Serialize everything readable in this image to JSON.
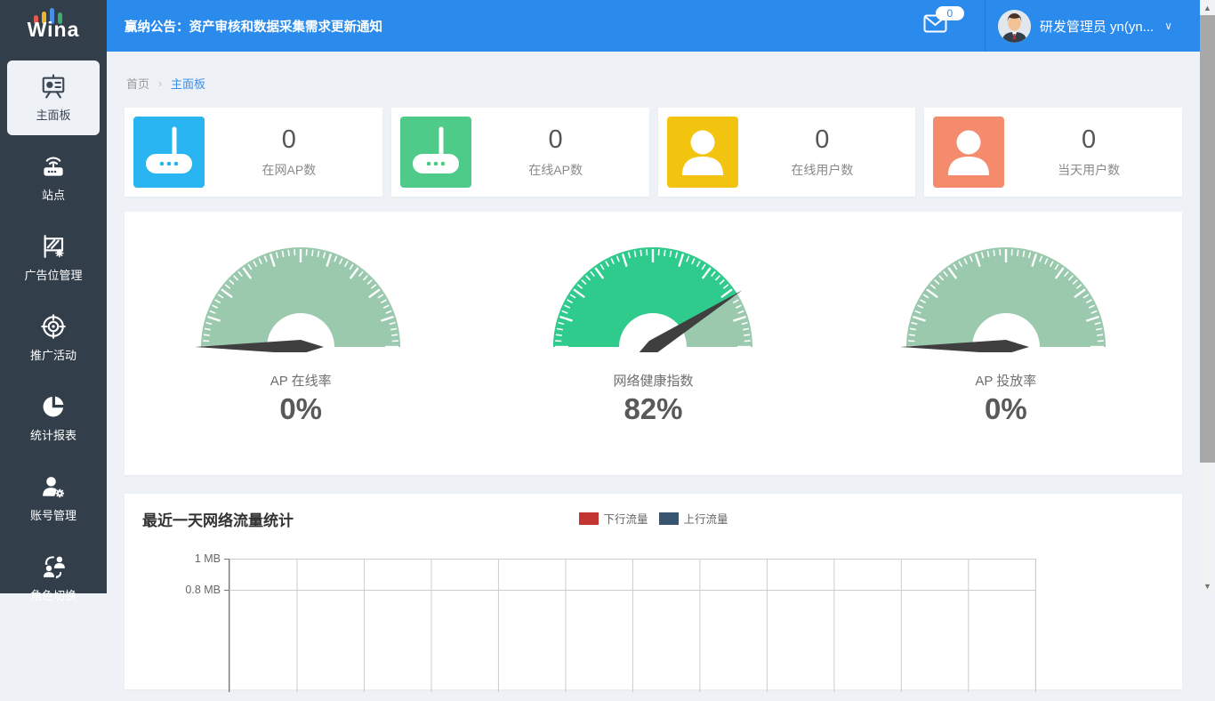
{
  "colors": {
    "header_bg": "#2b8bec",
    "sidebar_bg": "#323e4a",
    "content_bg": "#eef2f7",
    "gauge_fill": "#2fcb8d",
    "gauge_track": "#9ac9ae",
    "needle": "#3f3f3f"
  },
  "header": {
    "logo": "Wina",
    "announcement": "赢纳公告：资产审核和数据采集需求更新通知",
    "mail_badge": "0",
    "user": "研发管理员 yn(yn...",
    "chevron": "∨"
  },
  "sidebar": {
    "items": [
      {
        "label": "主面板",
        "icon": "dashboard-icon",
        "active": true
      },
      {
        "label": "站点",
        "icon": "site-icon",
        "active": false
      },
      {
        "label": "广告位管理",
        "icon": "ad-space-icon",
        "active": false
      },
      {
        "label": "推广活动",
        "icon": "promotion-icon",
        "active": false
      },
      {
        "label": "统计报表",
        "icon": "report-icon",
        "active": false
      },
      {
        "label": "账号管理",
        "icon": "account-icon",
        "active": false
      },
      {
        "label": "角色切换",
        "icon": "role-switch-icon",
        "active": false
      }
    ]
  },
  "breadcrumb": {
    "home": "首页",
    "separator": "›",
    "current": "主面板"
  },
  "stats": [
    {
      "label": "在网AP数",
      "value": "0",
      "icon": "router-icon",
      "color": "#29b5f1"
    },
    {
      "label": "在线AP数",
      "value": "0",
      "icon": "router-icon",
      "color": "#4fcb89"
    },
    {
      "label": "在线用户数",
      "value": "0",
      "icon": "user-icon",
      "color": "#f2c40f"
    },
    {
      "label": "当天用户数",
      "value": "0",
      "icon": "user-icon",
      "color": "#f48b6c"
    }
  ],
  "traffic": {
    "title": "最近一天网络流量统计",
    "y_ticks": [
      "1 MB",
      "0.8 MB"
    ]
  },
  "chart_data": [
    {
      "type": "gauge",
      "title": "AP 在线率",
      "value": 0,
      "min": 0,
      "max": 100,
      "display": "0%"
    },
    {
      "type": "gauge",
      "title": "网络健康指数",
      "value": 82,
      "min": 0,
      "max": 100,
      "display": "82%"
    },
    {
      "type": "gauge",
      "title": "AP 投放率",
      "value": 0,
      "min": 0,
      "max": 100,
      "display": "0%"
    },
    {
      "type": "line",
      "title": "最近一天网络流量统计",
      "series": [
        {
          "name": "下行流量",
          "color": "#c23531",
          "values": []
        },
        {
          "name": "上行流量",
          "color": "#36546e",
          "values": []
        }
      ],
      "y_tick_labels_visible": [
        "1 MB",
        "0.8 MB"
      ],
      "grid": true,
      "legend_position": "top-center",
      "note": "plot area is cut off at the bottom edge of the viewport; no data points visible"
    }
  ]
}
